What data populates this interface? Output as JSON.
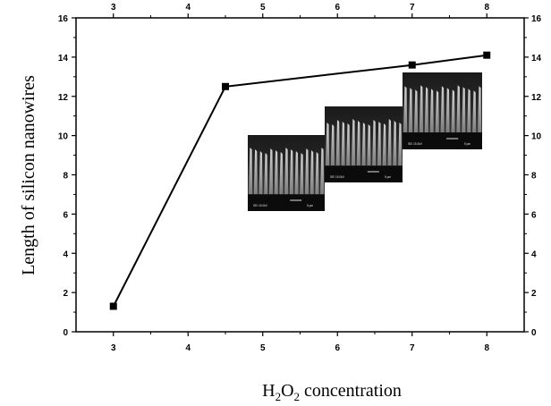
{
  "chart_data": {
    "type": "line",
    "title": "",
    "xlabel": "H2O2 concentration",
    "xlabel_parts": {
      "element1": "H",
      "sub1": "2",
      "element2": "O",
      "sub2": "2",
      "rest": " concentration"
    },
    "ylabel": "Length of silicon nanowires",
    "xlim": [
      2.5,
      8.5
    ],
    "ylim": [
      0,
      16
    ],
    "x_ticks": [
      "3",
      "4",
      "5",
      "6",
      "7",
      "8"
    ],
    "y_ticks": [
      "0",
      "2",
      "4",
      "6",
      "8",
      "10",
      "12",
      "14",
      "16"
    ],
    "series": [
      {
        "marker": "square",
        "color": "#000000",
        "x": [
          3,
          4.5,
          7,
          8
        ],
        "y": [
          1.3,
          12.5,
          13.6,
          14.1
        ]
      }
    ],
    "mirrored_axes": true,
    "grid": false,
    "legend": "none",
    "insets": [
      {
        "kind": "sem-micrograph",
        "caption": "SEI 15.0kV",
        "scale": "5 µm"
      },
      {
        "kind": "sem-micrograph",
        "caption": "SEI 15.0kV",
        "scale": "5 µm"
      },
      {
        "kind": "sem-micrograph",
        "caption": "SEI 15.0kV",
        "scale": "5 µm"
      }
    ]
  }
}
